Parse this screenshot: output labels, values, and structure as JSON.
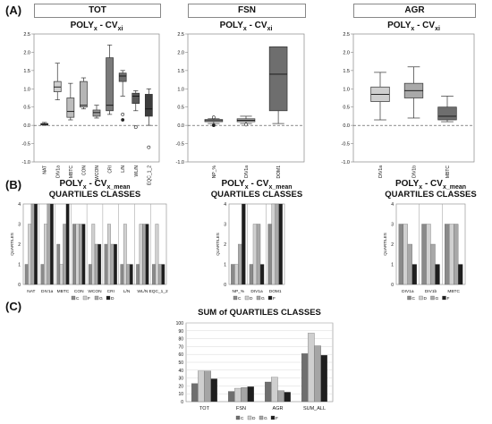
{
  "panel_labels": {
    "a": "(A)",
    "b": "(B)",
    "c": "(C)"
  },
  "headers": {
    "tot": "TOT",
    "fsn": "FSN",
    "agr": "AGR"
  },
  "chart_data": [
    {
      "type": "box",
      "panel": "A",
      "group": "TOT",
      "title": "POLY",
      "title_sub": "x",
      "title_suffix": " - CV",
      "title_sub2": "xi",
      "ylim": [
        -1.0,
        2.5
      ],
      "yticks": [
        "2.5",
        "2.0",
        "1.5",
        "1.0",
        "0.5",
        "0.0",
        "-0.5",
        "-1.0"
      ],
      "categories": [
        "NAT",
        "DIV1a",
        "MBTC",
        "CON",
        "WCON",
        "CRI",
        "L/N",
        "WL/N",
        "EQC_1_2"
      ],
      "colors": [
        "#9e9e9e",
        "#cfcfcf",
        "#bdbdbd",
        "#b5b5b5",
        "#9a9a9a",
        "#7a7a7a",
        "#6e6e6e",
        "#595959",
        "#3d3d3d"
      ],
      "boxes": [
        {
          "min": 0.0,
          "q1": 0.01,
          "med": 0.03,
          "q3": 0.05,
          "max": 0.08,
          "outliers": []
        },
        {
          "min": 0.7,
          "q1": 0.92,
          "med": 1.05,
          "q3": 1.2,
          "max": 1.7,
          "outliers": []
        },
        {
          "min": 0.15,
          "q1": 0.22,
          "med": 0.38,
          "q3": 0.75,
          "max": 1.15,
          "outliers": []
        },
        {
          "min": 0.45,
          "q1": 0.5,
          "med": 0.55,
          "q3": 1.2,
          "max": 1.3,
          "outliers": []
        },
        {
          "min": 0.2,
          "q1": 0.25,
          "med": 0.35,
          "q3": 0.42,
          "max": 0.55,
          "outliers": []
        },
        {
          "min": 0.3,
          "q1": 0.4,
          "med": 0.55,
          "q3": 1.85,
          "max": 2.2,
          "outliers": []
        },
        {
          "min": 0.8,
          "q1": 1.2,
          "med": 1.35,
          "q3": 1.43,
          "max": 1.5,
          "outliers": [
            0.3,
            0.15
          ]
        },
        {
          "min": 0.4,
          "q1": 0.6,
          "med": 0.8,
          "q3": 0.88,
          "max": 0.95,
          "outliers": [
            -0.05
          ]
        },
        {
          "min": 0.0,
          "q1": 0.25,
          "med": 0.45,
          "q3": 0.85,
          "max": 1.0,
          "outliers": [
            -0.6
          ]
        }
      ]
    },
    {
      "type": "box",
      "panel": "A",
      "group": "FSN",
      "title": "POLY",
      "title_sub": "x",
      "title_suffix": " - CV",
      "title_sub2": "xi",
      "ylim": [
        -1.0,
        2.5
      ],
      "yticks": [
        "2.5",
        "2.0",
        "1.5",
        "1.0",
        "0.5",
        "0.0",
        "-0.5",
        "-1.0"
      ],
      "categories": [
        "NP_%",
        "DIV1a",
        "DOM1"
      ],
      "colors": [
        "#bdbdbd",
        "#a5a5a5",
        "#6e6e6e"
      ],
      "boxes": [
        {
          "min": 0.05,
          "q1": 0.1,
          "med": 0.13,
          "q3": 0.16,
          "max": 0.18,
          "outliers": [
            0.22,
            0.0
          ]
        },
        {
          "min": 0.05,
          "q1": 0.1,
          "med": 0.14,
          "q3": 0.18,
          "max": 0.25,
          "outliers": [
            0.02
          ]
        },
        {
          "min": 0.05,
          "q1": 0.4,
          "med": 1.4,
          "q3": 2.15,
          "max": 2.15,
          "outliers": []
        }
      ]
    },
    {
      "type": "box",
      "panel": "A",
      "group": "AGR",
      "title": "POLY",
      "title_sub": "x",
      "title_suffix": " - CV",
      "title_sub2": "xi",
      "ylim": [
        -1.0,
        2.5
      ],
      "yticks": [
        "2.5",
        "2.0",
        "1.5",
        "1.0",
        "0.5",
        "0.0",
        "-0.5",
        "-1.0"
      ],
      "categories": [
        "DIV1a",
        "DIV1b",
        "MBTC"
      ],
      "colors": [
        "#cfcfcf",
        "#a9a9a9",
        "#6e6e6e"
      ],
      "boxes": [
        {
          "min": 0.15,
          "q1": 0.65,
          "med": 0.85,
          "q3": 1.05,
          "max": 1.45,
          "outliers": []
        },
        {
          "min": 0.2,
          "q1": 0.75,
          "med": 0.95,
          "q3": 1.15,
          "max": 1.6,
          "outliers": []
        },
        {
          "min": 0.1,
          "q1": 0.15,
          "med": 0.25,
          "q3": 0.5,
          "max": 0.8,
          "outliers": []
        }
      ]
    },
    {
      "type": "bar",
      "panel": "B",
      "group": "TOT",
      "title": "POLY",
      "title_sub": "x",
      "title_suffix": " - CV",
      "title_sub2": "x_mean",
      "subtitle": "QUARTILES CLASSES",
      "ylabel": "QUARTILES",
      "ylim": [
        0,
        4
      ],
      "yticks": [
        "4",
        "3",
        "2",
        "1",
        "0"
      ],
      "categories": [
        "NAT",
        "DIV1a",
        "MBTC",
        "CON",
        "WCON",
        "CRI",
        "L/N",
        "WL/N",
        "EQC_1_2"
      ],
      "series": [
        {
          "name": "C",
          "color": "#8a8a8a",
          "values": [
            1,
            1,
            2,
            3,
            1,
            2,
            1,
            1,
            1
          ]
        },
        {
          "name": "F",
          "color": "#d0d0d0",
          "values": [
            3,
            3,
            1,
            3,
            3,
            3,
            3,
            3,
            3
          ]
        },
        {
          "name": "G",
          "color": "#a8a8a8",
          "values": [
            4,
            4,
            3,
            3,
            2,
            2,
            1,
            3,
            1
          ]
        },
        {
          "name": "D",
          "color": "#1e1e1e",
          "values": [
            4,
            4,
            4,
            3,
            2,
            2,
            1,
            3,
            1
          ]
        }
      ],
      "legend": [
        "C",
        "F",
        "G",
        "D"
      ]
    },
    {
      "type": "bar",
      "panel": "B",
      "group": "FSN",
      "title": "POLY",
      "title_sub": "x",
      "title_suffix": " - CV",
      "title_sub2": "x_mean",
      "subtitle": "QUARTILES CLASSES",
      "ylabel": "QUARTILES",
      "ylim": [
        0,
        4
      ],
      "yticks": [
        "4",
        "3",
        "2",
        "1",
        "0"
      ],
      "categories": [
        "NP_%",
        "DIV1a",
        "DOM1"
      ],
      "series": [
        {
          "name": "C",
          "color": "#8a8a8a",
          "values": [
            1,
            1,
            3
          ]
        },
        {
          "name": "D",
          "color": "#d0d0d0",
          "values": [
            1,
            3,
            4
          ]
        },
        {
          "name": "G",
          "color": "#a8a8a8",
          "values": [
            2,
            3,
            4
          ]
        },
        {
          "name": "F",
          "color": "#1e1e1e",
          "values": [
            4,
            1,
            4
          ]
        }
      ],
      "legend": [
        "C",
        "D",
        "G",
        "F"
      ]
    },
    {
      "type": "bar",
      "panel": "B",
      "group": "AGR",
      "title": "POLY",
      "title_sub": "x",
      "title_suffix": " - CV",
      "title_sub2": "x_mean",
      "subtitle": "QUARTILES CLASSES",
      "ylabel": "QUARTILES",
      "ylim": [
        0,
        4
      ],
      "yticks": [
        "4",
        "3",
        "2",
        "1",
        "0"
      ],
      "categories": [
        "DIV1a",
        "DIV1b",
        "MBTC"
      ],
      "series": [
        {
          "name": "C",
          "color": "#8a8a8a",
          "values": [
            3,
            3,
            3
          ]
        },
        {
          "name": "D",
          "color": "#d0d0d0",
          "values": [
            3,
            3,
            3
          ]
        },
        {
          "name": "G",
          "color": "#a8a8a8",
          "values": [
            2,
            2,
            3
          ]
        },
        {
          "name": "F",
          "color": "#1e1e1e",
          "values": [
            1,
            1,
            1
          ]
        }
      ],
      "legend": [
        "C",
        "D",
        "G",
        "F"
      ]
    },
    {
      "type": "bar",
      "panel": "C",
      "title": "SUM of QUARTILES CLASSES",
      "ylim": [
        0,
        100
      ],
      "yticks": [
        "100",
        "90",
        "80",
        "70",
        "60",
        "50",
        "40",
        "30",
        "20",
        "10",
        "0"
      ],
      "categories": [
        "TOT",
        "FSN",
        "AGR",
        "SUM_ALL"
      ],
      "series": [
        {
          "name": "C",
          "color": "#6f6f6f",
          "values": [
            23,
            13,
            25,
            61
          ]
        },
        {
          "name": "D",
          "color": "#cfcfcf",
          "values": [
            39,
            17,
            31,
            87
          ]
        },
        {
          "name": "G",
          "color": "#a5a5a5",
          "values": [
            39,
            18,
            14,
            71
          ]
        },
        {
          "name": "F",
          "color": "#1e1e1e",
          "values": [
            29,
            19,
            12,
            59
          ]
        }
      ],
      "legend": [
        "C",
        "D",
        "G",
        "F"
      ]
    }
  ]
}
